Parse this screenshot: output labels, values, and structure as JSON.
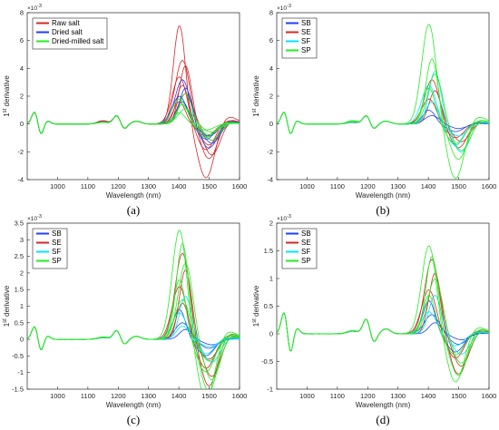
{
  "figure": {
    "title": ""
  },
  "chart_data": [
    {
      "type": "line",
      "caption": "(a)",
      "xlabel": "Wavelength (nm)",
      "ylabel": "1st derivative",
      "exponent_label": "×10-3",
      "xlim": [
        900,
        1600
      ],
      "ylim": [
        -4,
        8
      ],
      "xticks": [
        1000,
        1100,
        1200,
        1300,
        1400,
        1500,
        1600
      ],
      "yticks": [
        -4,
        -2,
        0,
        2,
        4,
        6,
        8
      ],
      "legend": "top-left",
      "series": [
        {
          "name": "Raw salt",
          "color": "#d62728",
          "amps": [
            7.1,
            4.6,
            4.2,
            3.4,
            2.8,
            2.2,
            1.6
          ]
        },
        {
          "name": "Dried salt",
          "color": "#1f3fff",
          "amps": [
            3.2,
            2.6,
            2.0,
            1.6
          ]
        },
        {
          "name": "Dried-milled salt",
          "color": "#22ee22",
          "amps": [
            2.2,
            1.8,
            1.4,
            1.1,
            0.8
          ]
        }
      ]
    },
    {
      "type": "line",
      "caption": "(b)",
      "xlabel": "Wavelength (nm)",
      "ylabel": "1st derivative",
      "exponent_label": "×10-3",
      "xlim": [
        900,
        1600
      ],
      "ylim": [
        -4,
        8
      ],
      "xticks": [
        1000,
        1100,
        1200,
        1300,
        1400,
        1500,
        1600
      ],
      "yticks": [
        -4,
        -2,
        0,
        2,
        4,
        6,
        8
      ],
      "legend": "top-left",
      "series": [
        {
          "name": "SB",
          "color": "#1f3fff",
          "amps": [
            1.0,
            0.6
          ]
        },
        {
          "name": "SE",
          "color": "#d62728",
          "amps": [
            3.2,
            2.4,
            1.8
          ]
        },
        {
          "name": "SF",
          "color": "#00e5ff",
          "amps": [
            3.8,
            2.8,
            1.6
          ]
        },
        {
          "name": "SP",
          "color": "#22ee22",
          "amps": [
            7.2,
            4.7,
            3.6,
            2.6
          ]
        }
      ]
    },
    {
      "type": "line",
      "caption": "(c)",
      "xlabel": "Wavelength (nm)",
      "ylabel": "1st derivative",
      "exponent_label": "×10-3",
      "xlim": [
        900,
        1600
      ],
      "ylim": [
        -1.5,
        3.5
      ],
      "xticks": [
        1000,
        1100,
        1200,
        1300,
        1400,
        1500,
        1600
      ],
      "yticks": [
        -1.5,
        -1,
        -0.5,
        0,
        0.5,
        1,
        1.5,
        2,
        2.5,
        3,
        3.5
      ],
      "legend": "top-left",
      "series": [
        {
          "name": "SB",
          "color": "#1f3fff",
          "amps": [
            0.9,
            0.5,
            0.3
          ]
        },
        {
          "name": "SE",
          "color": "#d62728",
          "amps": [
            2.6,
            2.1,
            1.6,
            1.1
          ]
        },
        {
          "name": "SF",
          "color": "#00e5ff",
          "amps": [
            1.3,
            0.8,
            0.4
          ]
        },
        {
          "name": "SP",
          "color": "#22ee22",
          "amps": [
            3.3,
            2.9,
            2.3,
            1.8,
            1.2
          ]
        }
      ]
    },
    {
      "type": "line",
      "caption": "(d)",
      "xlabel": "Wavelength (nm)",
      "ylabel": "1st derivative",
      "exponent_label": "×10-3",
      "xlim": [
        900,
        1600
      ],
      "ylim": [
        -1,
        2
      ],
      "xticks": [
        1000,
        1100,
        1200,
        1300,
        1400,
        1500,
        1600
      ],
      "yticks": [
        -1,
        -0.5,
        0,
        0.5,
        1,
        1.5,
        2
      ],
      "legend": "top-left",
      "series": [
        {
          "name": "SB",
          "color": "#1f3fff",
          "amps": [
            0.6,
            0.35,
            0.2
          ]
        },
        {
          "name": "SE",
          "color": "#d62728",
          "amps": [
            1.35,
            1.1,
            0.8
          ]
        },
        {
          "name": "SF",
          "color": "#00e5ff",
          "amps": [
            0.7,
            0.4
          ]
        },
        {
          "name": "SP",
          "color": "#22ee22",
          "amps": [
            1.6,
            1.4,
            1.0,
            0.7
          ]
        }
      ]
    }
  ]
}
